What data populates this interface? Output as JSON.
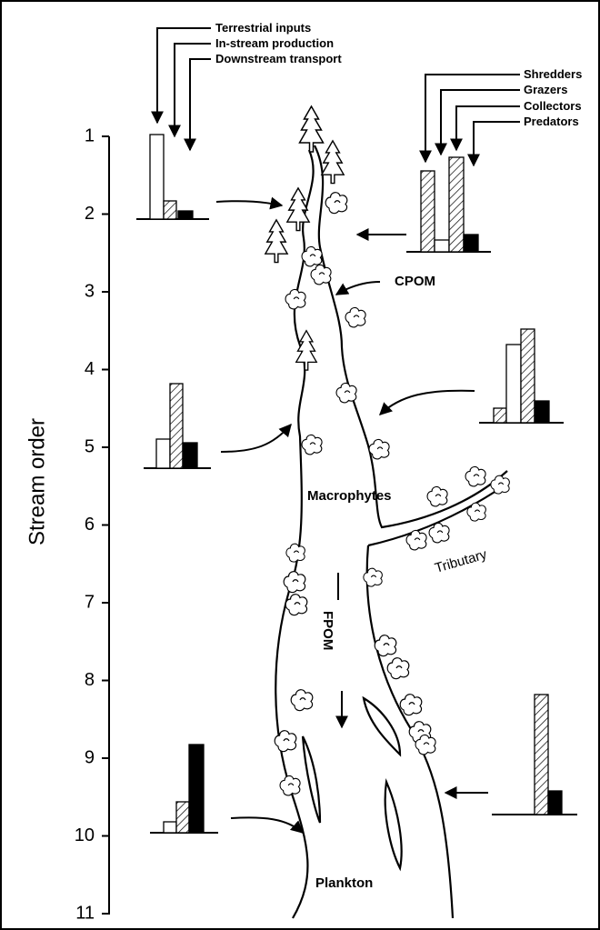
{
  "legend_inputs": [
    "Terrestrial inputs",
    "In-stream production",
    "Downstream transport"
  ],
  "legend_groups": [
    "Shredders",
    "Grazers",
    "Collectors",
    "Predators"
  ],
  "labels": {
    "cpom": "CPOM",
    "macrophytes": "Macrophytes",
    "tributary": "Tributary",
    "fpom": "FPOM",
    "plankton": "Plankton"
  },
  "axis": {
    "title": "Stream order",
    "ticks": [
      1,
      2,
      3,
      4,
      5,
      6,
      7,
      8,
      9,
      10,
      11
    ]
  }
}
